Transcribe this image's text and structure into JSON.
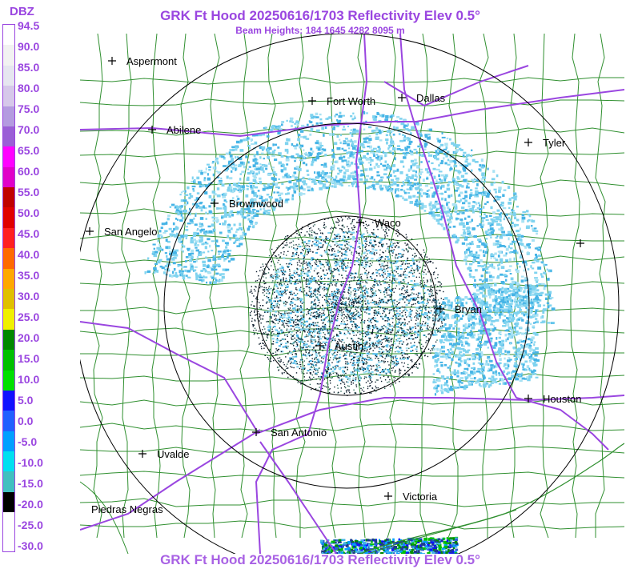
{
  "header": {
    "title": "GRK Ft Hood 20250616/1703 Reflectivity Elev 0.5°",
    "subtitle": "Beam Heights: 184 1645 4282 8095 m"
  },
  "legend": {
    "unit": "DBZ",
    "labels": [
      "94.5",
      "90.0",
      "85.0",
      "80.0",
      "75.0",
      "70.0",
      "65.0",
      "60.0",
      "55.0",
      "50.0",
      "45.0",
      "40.0",
      "35.0",
      "30.0",
      "25.0",
      "20.0",
      "15.0",
      "10.0",
      "5.0",
      "0.0",
      "-5.0",
      "-10.0",
      "-15.0",
      "-20.0",
      "-25.0",
      "-30.0"
    ],
    "colors": [
      "#ffffff",
      "#f2f2f2",
      "#e6e6f0",
      "#d6c8ea",
      "#b49be0",
      "#9a5fd6",
      "#ff00ff",
      "#e000c8",
      "#c00000",
      "#e00000",
      "#ff2020",
      "#ff6a00",
      "#ffa800",
      "#e0c000",
      "#f0f000",
      "#008800",
      "#00c000",
      "#00e000",
      "#1010ff",
      "#2060ff",
      "#00a0ff",
      "#00e0f0",
      "#40c0c0",
      "#000000",
      "#ffffff",
      "#ffffff"
    ]
  },
  "map": {
    "cities": [
      "Aspermont",
      "Fort Worth",
      "Dallas",
      "Abilene",
      "Tyler",
      "Brownwood",
      "Waco",
      "San Angelo",
      "Bryan",
      "Austin",
      "Houston",
      "San Antonio",
      "Uvalde",
      "Victoria",
      "Piedras Negras"
    ],
    "unlabeled_markers": 1,
    "colors": {
      "roads": "#9a46e0",
      "county_lines": "#2f8f2f",
      "range_rings": "#000000",
      "echo_light": "#7fd3ef",
      "echo_mid": "#46b4e6",
      "echo_dark": "#1e3c8c",
      "clutter": "#0a1a2a"
    }
  },
  "footer": {
    "title": "GRK Ft Hood 20250616/1703 Reflectivity Elev 0.5°"
  }
}
